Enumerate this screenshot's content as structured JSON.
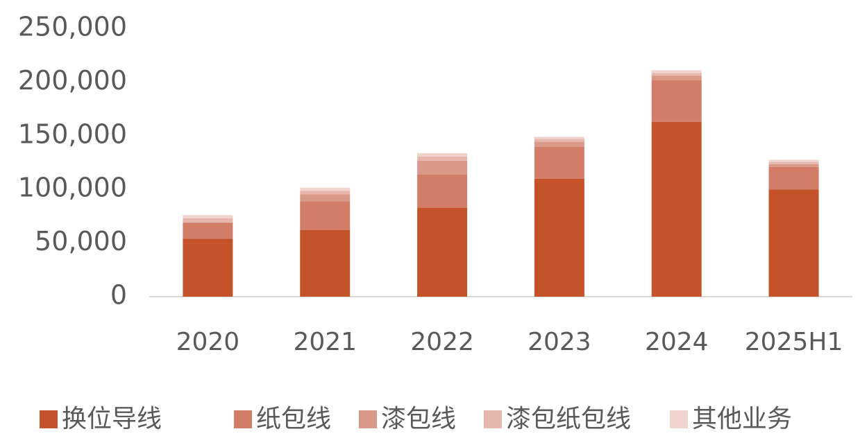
{
  "chart_data": {
    "type": "stacked_bar",
    "categories": [
      "2020",
      "2021",
      "2022",
      "2023",
      "2024",
      "2025H1"
    ],
    "series": [
      {
        "name": "换位导线",
        "color": "#c4532a",
        "values": [
          54000,
          62000,
          82700,
          110000,
          163000,
          100000
        ]
      },
      {
        "name": "纸包线",
        "color": "#d27d68",
        "values": [
          15000,
          27000,
          31000,
          30000,
          39000,
          21000
        ]
      },
      {
        "name": "漆包线",
        "color": "#da9888",
        "values": [
          0,
          6500,
          13000,
          4500,
          4000,
          2500
        ]
      },
      {
        "name": "漆包纸包线",
        "color": "#e6b7ac",
        "values": [
          4000,
          3000,
          4000,
          2500,
          2500,
          2000
        ]
      },
      {
        "name": "其他业务",
        "color": "#efd3cc",
        "values": [
          3000,
          3000,
          3000,
          2000,
          2500,
          2000
        ]
      }
    ],
    "ylim": [
      0,
      250000
    ],
    "yticks": [
      0,
      {
        "value": 50000,
        "label": "50,000"
      },
      {
        "value": 100000,
        "label": "100,000"
      },
      {
        "value": 150000,
        "label": "150,000"
      },
      {
        "value": 200000,
        "label": "200,000"
      },
      {
        "value": 250000,
        "label": "250,000"
      }
    ]
  }
}
